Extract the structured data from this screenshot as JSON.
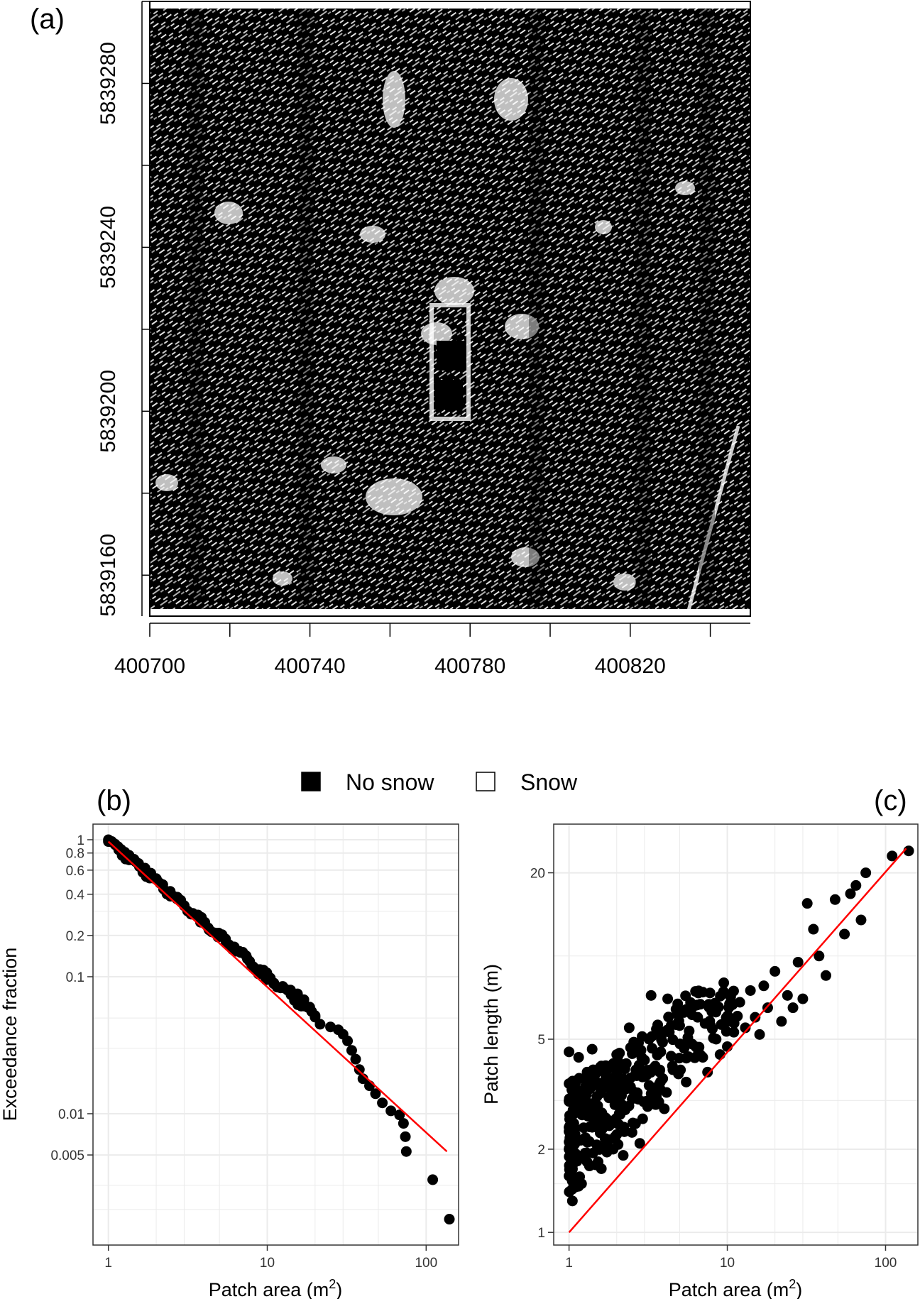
{
  "chart_data": [
    {
      "panel": "a",
      "type": "heatmap",
      "label": "(a)",
      "xticks": [
        "400700",
        "400740",
        "400780",
        "400820"
      ],
      "yticks": [
        "5839280",
        "5839240",
        "5839200",
        "5839160"
      ],
      "xlim": [
        400700,
        400850
      ],
      "ylim": [
        5839150,
        5839300
      ],
      "classes": [
        {
          "name": "No snow",
          "color": "#000000"
        },
        {
          "name": "Snow",
          "color": "#ffffff"
        }
      ]
    },
    {
      "panel": "b",
      "type": "scatter",
      "label": "(b)",
      "xlabel_main": "Patch area (m",
      "xlabel_sup": "2",
      "xlabel_end": ")",
      "ylabel": "Exceedance fraction",
      "x_scale": "log",
      "y_scale": "log",
      "xlim": [
        0.8,
        160
      ],
      "ylim": [
        0.0011,
        1.3
      ],
      "xticks": [
        {
          "v": 1,
          "label": "1"
        },
        {
          "v": 10,
          "label": "10"
        },
        {
          "v": 100,
          "label": "100"
        }
      ],
      "yticks": [
        {
          "v": 1,
          "label": "1"
        },
        {
          "v": 0.8,
          "label": "0.8"
        },
        {
          "v": 0.6,
          "label": "0.6"
        },
        {
          "v": 0.4,
          "label": "0.4"
        },
        {
          "v": 0.2,
          "label": "0.2"
        },
        {
          "v": 0.1,
          "label": "0.1"
        },
        {
          "v": 0.01,
          "label": "0.01"
        },
        {
          "v": 0.005,
          "label": "0.005"
        }
      ],
      "grid": true,
      "points": [
        [
          1.0,
          1.0
        ],
        [
          1.05,
          0.97
        ],
        [
          1.1,
          0.93
        ],
        [
          1.15,
          0.89
        ],
        [
          1.2,
          0.85
        ],
        [
          1.27,
          0.81
        ],
        [
          1.35,
          0.77
        ],
        [
          1.45,
          0.72
        ],
        [
          1.55,
          0.67
        ],
        [
          1.7,
          0.62
        ],
        [
          1.85,
          0.57
        ],
        [
          2.0,
          0.52
        ],
        [
          2.2,
          0.47
        ],
        [
          2.45,
          0.42
        ],
        [
          2.7,
          0.37
        ],
        [
          3.0,
          0.33
        ],
        [
          3.4,
          0.29
        ],
        [
          3.8,
          0.25
        ],
        [
          4.3,
          0.22
        ],
        [
          4.9,
          0.195
        ],
        [
          5.5,
          0.18
        ],
        [
          6.2,
          0.165
        ],
        [
          6.8,
          0.15
        ],
        [
          7.5,
          0.135
        ],
        [
          8.0,
          0.12
        ],
        [
          8.8,
          0.105
        ],
        [
          9.8,
          0.095
        ],
        [
          11,
          0.09
        ],
        [
          12.5,
          0.085
        ],
        [
          14,
          0.08
        ],
        [
          15.5,
          0.075
        ],
        [
          17,
          0.068
        ],
        [
          18.5,
          0.06
        ],
        [
          20,
          0.052
        ],
        [
          21.5,
          0.045
        ],
        [
          25,
          0.043
        ],
        [
          28,
          0.041
        ],
        [
          30,
          0.038
        ],
        [
          32,
          0.034
        ],
        [
          34,
          0.029
        ],
        [
          36,
          0.025
        ],
        [
          38,
          0.021
        ],
        [
          40,
          0.018
        ],
        [
          44,
          0.016
        ],
        [
          48,
          0.014
        ],
        [
          53,
          0.012
        ],
        [
          60,
          0.0105
        ],
        [
          68,
          0.0098
        ],
        [
          72,
          0.0085
        ],
        [
          74,
          0.0068
        ],
        [
          75,
          0.0053
        ],
        [
          110,
          0.0033
        ],
        [
          140,
          0.0017
        ]
      ],
      "fit_line": [
        [
          1.0,
          0.97
        ],
        [
          135,
          0.0053
        ]
      ]
    },
    {
      "panel": "c",
      "type": "scatter",
      "label": "(c)",
      "xlabel_main": "Patch area (m",
      "xlabel_sup": "2",
      "xlabel_end": ")",
      "ylabel": "Patch length (m)",
      "x_scale": "log",
      "y_scale": "log",
      "xlim": [
        0.8,
        160
      ],
      "ylim": [
        0.9,
        30
      ],
      "xticks": [
        {
          "v": 1,
          "label": "1"
        },
        {
          "v": 10,
          "label": "10"
        },
        {
          "v": 100,
          "label": "100"
        }
      ],
      "yticks": [
        {
          "v": 1,
          "label": "1"
        },
        {
          "v": 2,
          "label": "2"
        },
        {
          "v": 5,
          "label": "5"
        },
        {
          "v": 20,
          "label": "20"
        }
      ],
      "grid": true,
      "points": [
        [
          1.0,
          4.5
        ],
        [
          1.0,
          3.0
        ],
        [
          1.0,
          2.0
        ],
        [
          1.0,
          1.6
        ],
        [
          1.05,
          2.5
        ],
        [
          1.05,
          1.3
        ],
        [
          1.1,
          3.5
        ],
        [
          1.1,
          2.2
        ],
        [
          1.15,
          4.3
        ],
        [
          1.2,
          1.5
        ],
        [
          1.2,
          2.8
        ],
        [
          1.3,
          3.8
        ],
        [
          1.3,
          1.8
        ],
        [
          1.4,
          2.4
        ],
        [
          1.4,
          4.6
        ],
        [
          1.5,
          3.1
        ],
        [
          1.6,
          1.7
        ],
        [
          1.6,
          4.0
        ],
        [
          1.7,
          2.6
        ],
        [
          1.8,
          3.4
        ],
        [
          1.9,
          2.0
        ],
        [
          2.0,
          4.4
        ],
        [
          2.0,
          2.9
        ],
        [
          2.2,
          1.9
        ],
        [
          2.2,
          3.6
        ],
        [
          2.4,
          5.5
        ],
        [
          2.5,
          2.3
        ],
        [
          2.7,
          3.2
        ],
        [
          2.8,
          2.1
        ],
        [
          3.0,
          4.2
        ],
        [
          3.2,
          5.0
        ],
        [
          3.3,
          7.2
        ],
        [
          3.5,
          3.0
        ],
        [
          3.8,
          4.5
        ],
        [
          4.0,
          2.8
        ],
        [
          4.2,
          7.0
        ],
        [
          4.5,
          4.0
        ],
        [
          5.0,
          5.6
        ],
        [
          5.5,
          3.5
        ],
        [
          6.0,
          4.8
        ],
        [
          6.5,
          6.0
        ],
        [
          7.0,
          4.3
        ],
        [
          7.5,
          3.8
        ],
        [
          8.0,
          6.5
        ],
        [
          8.5,
          5.0
        ],
        [
          9.0,
          4.4
        ],
        [
          9.5,
          8.0
        ],
        [
          10,
          4.7
        ],
        [
          11,
          5.3
        ],
        [
          12,
          6.8
        ],
        [
          13,
          5.5
        ],
        [
          14,
          7.5
        ],
        [
          15,
          6.0
        ],
        [
          16,
          5.2
        ],
        [
          17,
          7.8
        ],
        [
          18,
          6.5
        ],
        [
          20,
          8.8
        ],
        [
          22,
          5.8
        ],
        [
          24,
          7.2
        ],
        [
          26,
          6.5
        ],
        [
          28,
          9.5
        ],
        [
          30,
          7.0
        ],
        [
          32,
          15.5
        ],
        [
          35,
          12.5
        ],
        [
          38,
          10.0
        ],
        [
          42,
          8.5
        ],
        [
          48,
          16.0
        ],
        [
          55,
          12.0
        ],
        [
          60,
          16.8
        ],
        [
          65,
          18.0
        ],
        [
          70,
          13.5
        ],
        [
          75,
          20.0
        ],
        [
          110,
          23.0
        ],
        [
          140,
          24.0
        ]
      ],
      "fit_line": [
        [
          1.0,
          1.0
        ],
        [
          135,
          24.5
        ]
      ]
    }
  ],
  "legend": {
    "items": [
      {
        "label": "No snow",
        "fill": "#000000"
      },
      {
        "label": "Snow",
        "fill": "#ffffff"
      }
    ]
  },
  "colors": {
    "fit": "#ff0000",
    "grid": "#ebebeb",
    "points": "#000000"
  }
}
